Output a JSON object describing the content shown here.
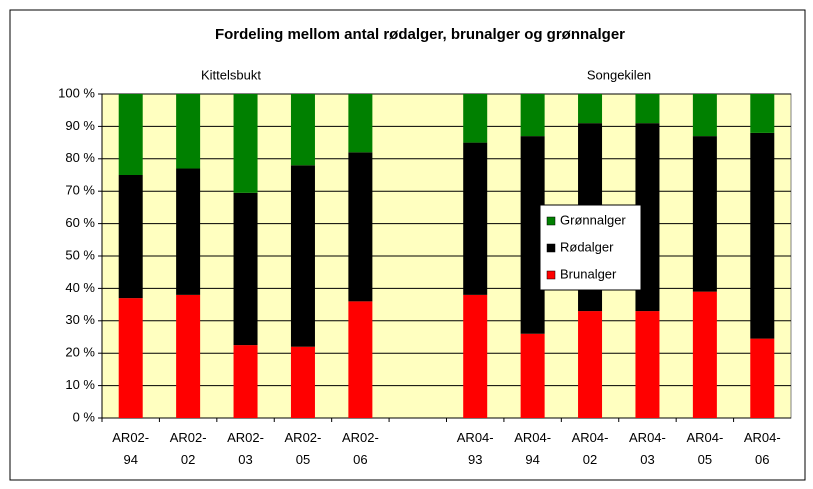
{
  "chart_data": {
    "type": "stacked_bar",
    "title": "Fordeling mellom antal rødalger, brunalger og grønnalger",
    "annotations": [
      "Kittelsbukt",
      "Songekilen"
    ],
    "categories": [
      "AR02-94",
      "AR02-02",
      "AR02-03",
      "AR02-05",
      "AR02-06",
      null,
      "AR04-93",
      "AR04-94",
      "AR04-02",
      "AR04-03",
      "AR04-05",
      "AR04-06"
    ],
    "series": [
      {
        "name": "Brunalger",
        "color": "#ff0000",
        "values": [
          37,
          38,
          22.5,
          22,
          36,
          null,
          38,
          26,
          33,
          33,
          39,
          24.5
        ]
      },
      {
        "name": "Rødalger",
        "color": "#000000",
        "values": [
          38,
          39,
          47,
          56,
          46,
          null,
          47,
          61,
          58,
          58,
          48,
          63.5
        ]
      },
      {
        "name": "Grønnalger",
        "color": "#008000",
        "values": [
          25,
          23,
          30.5,
          22,
          18,
          null,
          15,
          13,
          9,
          9,
          13,
          12
        ]
      }
    ],
    "ylim": [
      0,
      100
    ],
    "yticks": [
      {
        "value": 0,
        "label": "0 %"
      },
      {
        "value": 10,
        "label": "10 %"
      },
      {
        "value": 20,
        "label": "20 %"
      },
      {
        "value": 30,
        "label": "30 %"
      },
      {
        "value": 40,
        "label": "40 %"
      },
      {
        "value": 50,
        "label": "50 %"
      },
      {
        "value": 60,
        "label": "60 %"
      },
      {
        "value": 70,
        "label": "70 %"
      },
      {
        "value": 80,
        "label": "80 %"
      },
      {
        "value": 90,
        "label": "90 %"
      },
      {
        "value": 100,
        "label": "100 %"
      }
    ],
    "grid": true,
    "plot_background": "#ffffc0"
  }
}
